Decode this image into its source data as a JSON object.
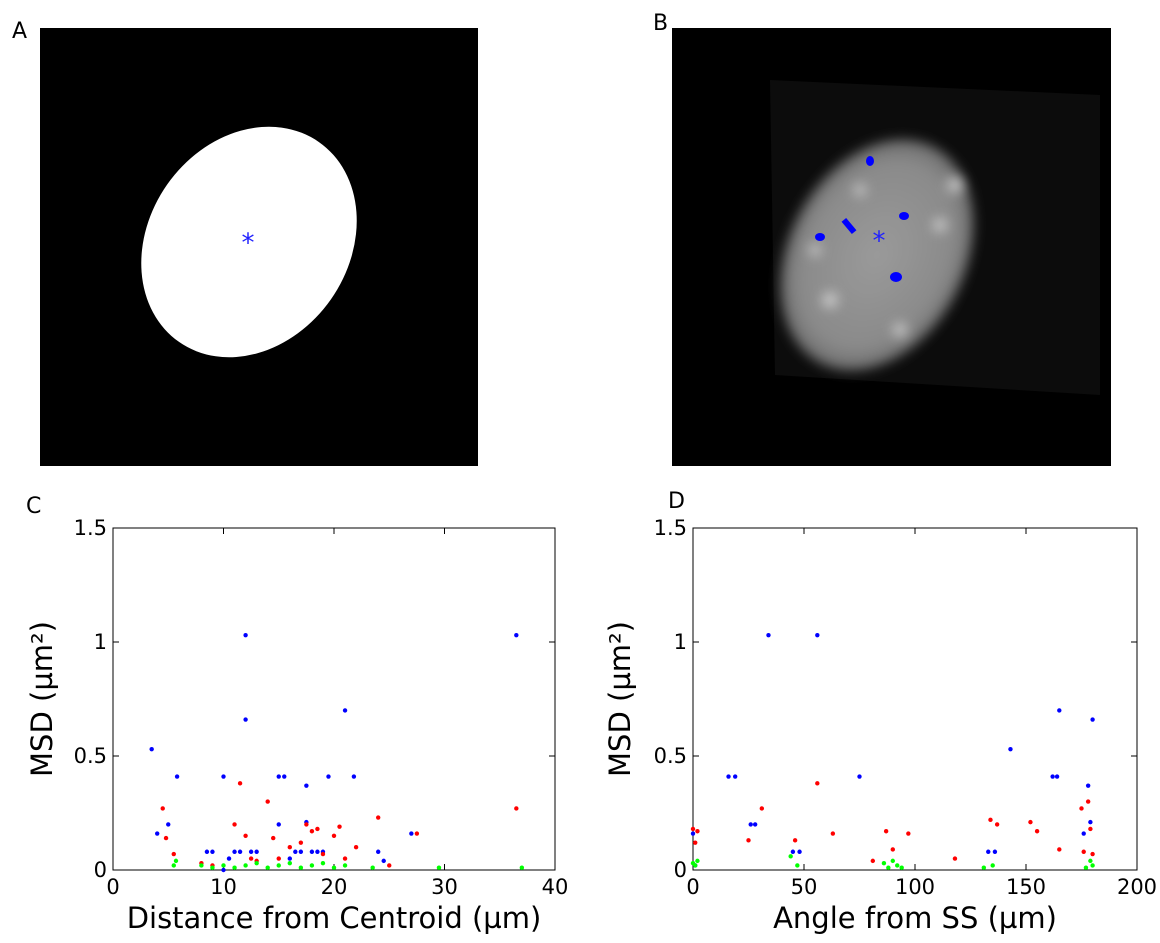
{
  "panels": [
    "A",
    "B",
    "C",
    "D"
  ],
  "chart_data": [
    {
      "type": "scatter",
      "xlabel": "Distance from Centroid (µm)",
      "ylabel": "MSD (µm²)",
      "xlim": [
        0,
        40
      ],
      "xticks": [
        0,
        10,
        20,
        30,
        40
      ],
      "ylim": [
        0,
        1.5
      ],
      "yticks": [
        0,
        0.5,
        1,
        1.5
      ],
      "series": [
        {
          "color": "#0000ff",
          "x": [
            3.5,
            4,
            5,
            5.8,
            8.5,
            9,
            10,
            10.5,
            11,
            11.5,
            12,
            12,
            12.5,
            13,
            15,
            15.5,
            15,
            16,
            16.5,
            17,
            17.5,
            17.5,
            18,
            18.5,
            19,
            19.5,
            21,
            21.8,
            24,
            24.5,
            27,
            36.5,
            10
          ],
          "values": [
            0.53,
            0.16,
            0.2,
            0.41,
            0.08,
            0.08,
            0.41,
            0.05,
            0.08,
            0.08,
            1.03,
            0.66,
            0.08,
            0.08,
            0.41,
            0.41,
            0.2,
            0.05,
            0.08,
            0.08,
            0.21,
            0.37,
            0.08,
            0.08,
            0.08,
            0.41,
            0.7,
            0.41,
            0.08,
            0.04,
            0.16,
            1.03,
            0
          ]
        },
        {
          "color": "#ff0000",
          "x": [
            4.5,
            4.8,
            5.5,
            8,
            9,
            11,
            11.5,
            12,
            12.5,
            13,
            14,
            14.5,
            15,
            16,
            17,
            17.5,
            18,
            18.5,
            19,
            20,
            20.5,
            21,
            22,
            24,
            25,
            27.5,
            36.5
          ],
          "values": [
            0.27,
            0.14,
            0.07,
            0.03,
            0.02,
            0.2,
            0.38,
            0.15,
            0.05,
            0.04,
            0.3,
            0.14,
            0.05,
            0.1,
            0.12,
            0.2,
            0.17,
            0.18,
            0.07,
            0.15,
            0.19,
            0.05,
            0.1,
            0.23,
            0.02,
            0.16,
            0.27
          ]
        },
        {
          "color": "#00ff00",
          "x": [
            5.5,
            5.7,
            8,
            9,
            10,
            11,
            12,
            13,
            14,
            15,
            16,
            17,
            18,
            19,
            20,
            21,
            23.5,
            29.5,
            37
          ],
          "values": [
            0.02,
            0.04,
            0.02,
            0.01,
            0.02,
            0.01,
            0.02,
            0.03,
            0.01,
            0.02,
            0.03,
            0.01,
            0.02,
            0.03,
            0.01,
            0.02,
            0.01,
            0.01,
            0.01
          ]
        }
      ]
    },
    {
      "type": "scatter",
      "xlabel": "Angle from SS (µm)",
      "ylabel": "MSD (µm²)",
      "xlim": [
        0,
        200
      ],
      "xticks": [
        0,
        50,
        100,
        150,
        200
      ],
      "ylim": [
        0,
        1.5
      ],
      "yticks": [
        0,
        0.5,
        1,
        1.5
      ],
      "series": [
        {
          "color": "#0000ff",
          "x": [
            0,
            1,
            16,
            19,
            26,
            28,
            34,
            45,
            48,
            56,
            75,
            133,
            136,
            143,
            162,
            164,
            165,
            176,
            178,
            179,
            180
          ],
          "values": [
            0.16,
            0.02,
            0.41,
            0.41,
            0.2,
            0.2,
            1.03,
            0.08,
            0.08,
            1.03,
            0.41,
            0.08,
            0.08,
            0.53,
            0.41,
            0.41,
            0.7,
            0.16,
            0.37,
            0.21,
            0.66
          ]
        },
        {
          "color": "#ff0000",
          "x": [
            0,
            1,
            2,
            25,
            31,
            46,
            56,
            63,
            81,
            87,
            90,
            97,
            118,
            134,
            137,
            152,
            155,
            165,
            175,
            176,
            178,
            179,
            180
          ],
          "values": [
            0.18,
            0.12,
            0.17,
            0.13,
            0.27,
            0.13,
            0.38,
            0.16,
            0.04,
            0.17,
            0.09,
            0.16,
            0.05,
            0.22,
            0.2,
            0.21,
            0.17,
            0.09,
            0.27,
            0.08,
            0.3,
            0.18,
            0.07
          ]
        },
        {
          "color": "#00ff00",
          "x": [
            0,
            1,
            2,
            44,
            47,
            86,
            88,
            90,
            92,
            94,
            131,
            135,
            177,
            179,
            180
          ],
          "values": [
            0.03,
            0.02,
            0.04,
            0.06,
            0.02,
            0.03,
            0.01,
            0.04,
            0.02,
            0.01,
            0.01,
            0.02,
            0.01,
            0.04,
            0.02
          ]
        }
      ]
    }
  ]
}
